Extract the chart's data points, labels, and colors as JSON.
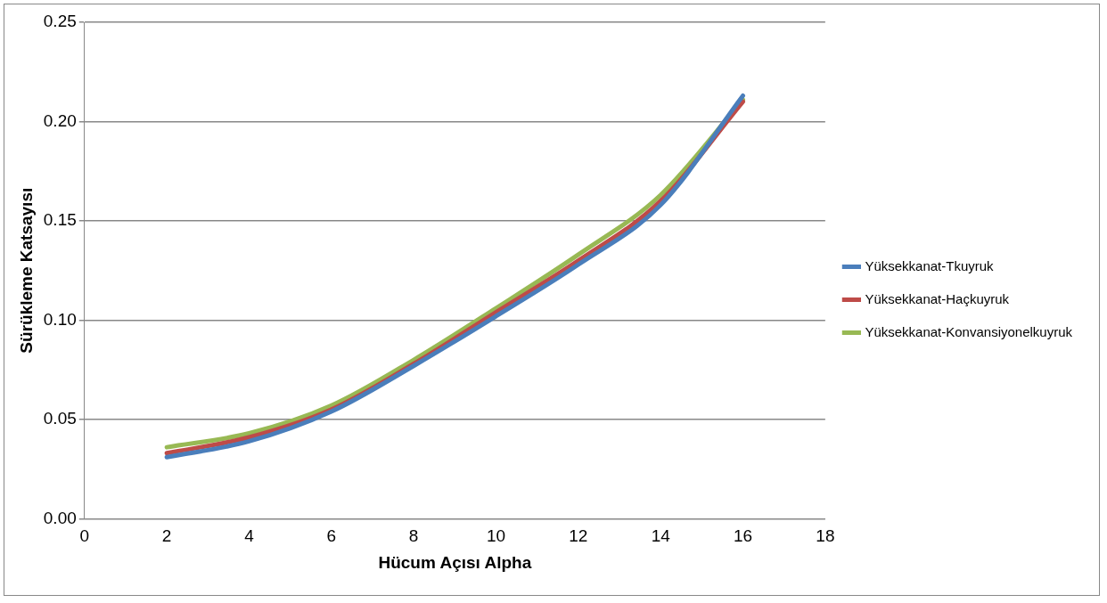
{
  "chart_data": {
    "type": "line",
    "xlabel": "Hücum Açısı Alpha",
    "ylabel": "Sürükleme Katsayısı",
    "x": [
      2,
      4,
      6,
      8,
      10,
      12,
      14,
      16
    ],
    "series": [
      {
        "name": "Yüksekkanat-Tkuyruk",
        "color": "#4a7ebb",
        "values": [
          0.031,
          0.039,
          0.054,
          0.077,
          0.102,
          0.128,
          0.158,
          0.213
        ]
      },
      {
        "name": "Yüksekkanat-Haçkuyruk",
        "color": "#be4b48",
        "values": [
          0.033,
          0.041,
          0.055,
          0.078,
          0.104,
          0.13,
          0.16,
          0.21
        ]
      },
      {
        "name": "Yüksekkanat-Konvansiyonelkuyruk",
        "color": "#98b954",
        "values": [
          0.036,
          0.043,
          0.057,
          0.08,
          0.106,
          0.133,
          0.163,
          0.211
        ]
      }
    ],
    "xlim": [
      0,
      18
    ],
    "xticks": [
      0,
      2,
      4,
      6,
      8,
      10,
      12,
      14,
      16,
      18
    ],
    "ylim": [
      0,
      0.25
    ],
    "yticks": [
      {
        "value": 0,
        "label": "0.00"
      },
      {
        "value": 0.05,
        "label": "0.05"
      },
      {
        "value": 0.1,
        "label": "0.10"
      },
      {
        "value": 0.15,
        "label": "0.15"
      },
      {
        "value": 0.2,
        "label": "0.20"
      },
      {
        "value": 0.25,
        "label": "0.25"
      }
    ],
    "grid": "y",
    "legend": "right",
    "marker": "none",
    "line_style": "solid"
  }
}
